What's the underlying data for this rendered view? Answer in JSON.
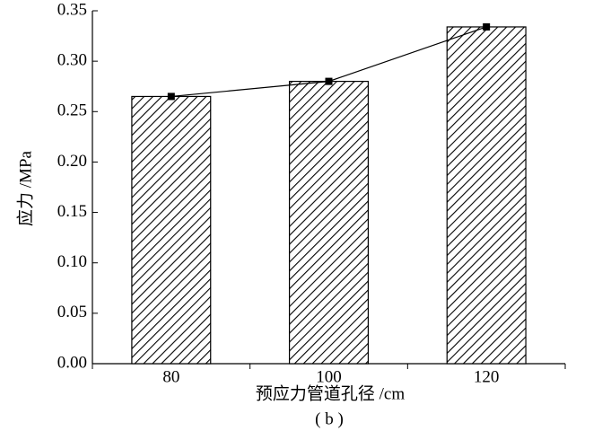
{
  "chart_data": {
    "type": "bar",
    "caption": "( b )",
    "x_label": "预应力管道孔径 /cm",
    "y_label": "应力 /MPa",
    "categories": [
      "80",
      "100",
      "120"
    ],
    "values": [
      0.265,
      0.28,
      0.334
    ],
    "color": "#000000",
    "hatch": true,
    "line_markers": true,
    "ylim": [
      0,
      0.35
    ],
    "yticks": [
      {
        "value": 0,
        "label": "0.00"
      },
      {
        "value": 0.05,
        "label": "0.05"
      },
      {
        "value": 0.1,
        "label": "0.10"
      },
      {
        "value": 0.15,
        "label": "0.15"
      },
      {
        "value": 0.2,
        "label": "0.20"
      },
      {
        "value": 0.25,
        "label": "0.25"
      },
      {
        "value": 0.3,
        "label": "0.30"
      },
      {
        "value": 0.35,
        "label": "0.35"
      }
    ],
    "grid": false
  }
}
